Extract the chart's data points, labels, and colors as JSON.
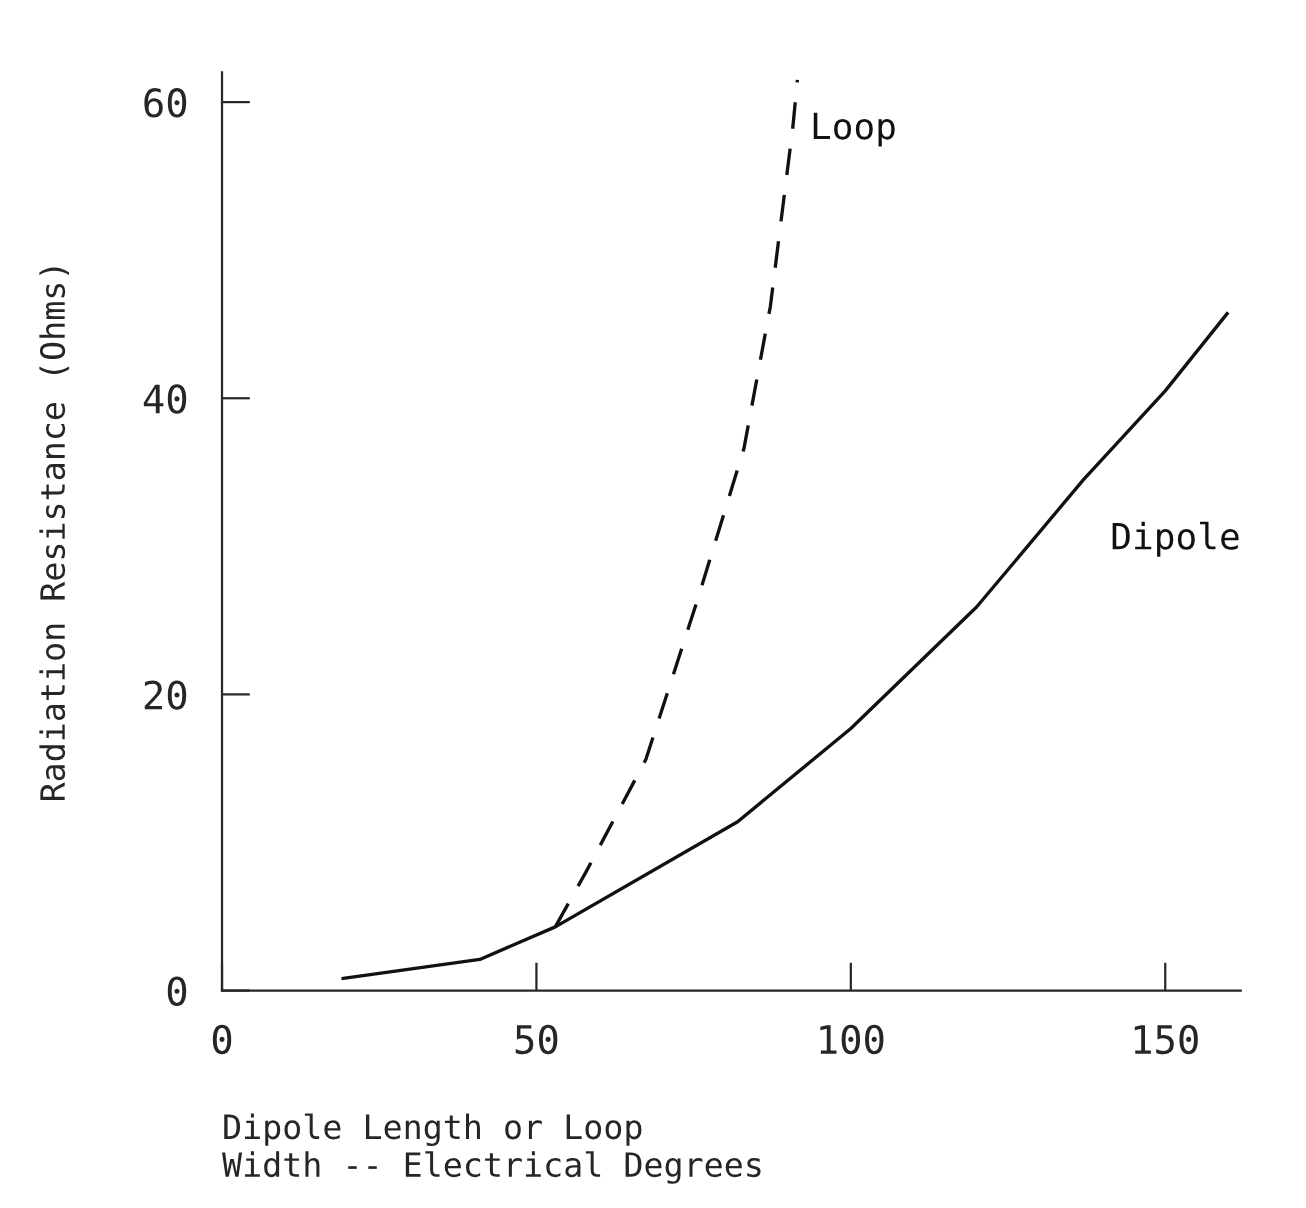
{
  "chart_data": {
    "type": "line",
    "xlabel": "Dipole Length or Loop\nWidth -- Electrical Degrees",
    "ylabel": "Radiation Resistance (Ohms)",
    "xlim": [
      0,
      162
    ],
    "ylim": [
      0,
      62
    ],
    "xticks": [
      0,
      50,
      100,
      150
    ],
    "yticks": [
      0,
      20,
      40,
      60
    ],
    "grid": false,
    "legend": false,
    "marker": "none",
    "series": [
      {
        "name": "Dipole",
        "color": "#111111",
        "line_style": "solid",
        "x": [
          19,
          41,
          53,
          82,
          100,
          120,
          137,
          150,
          160
        ],
        "values": [
          0.8,
          2.1,
          4.3,
          11.4,
          17.7,
          25.9,
          34.5,
          40.5,
          45.8
        ]
      },
      {
        "name": "Loop",
        "color": "#111111",
        "line_style": "dashed",
        "x": [
          53,
          58,
          67.4,
          75.7,
          83,
          87.2,
          90.8,
          91.5
        ],
        "values": [
          4.3,
          8.1,
          15.6,
          26.5,
          36.6,
          46.2,
          58.4,
          61.5
        ]
      }
    ]
  }
}
